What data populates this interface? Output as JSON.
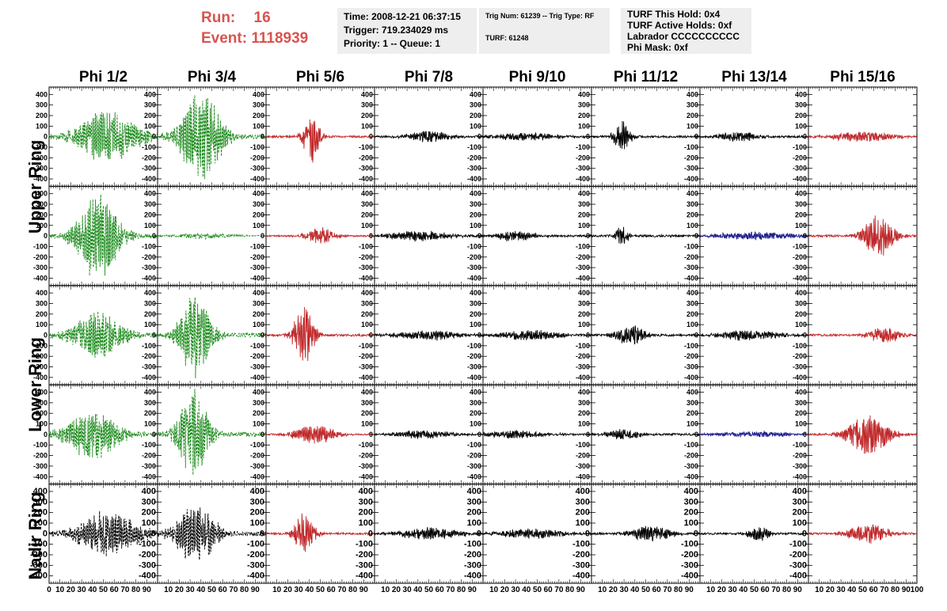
{
  "header": {
    "run_label": "Run:",
    "run_value": "16",
    "event_label": "Event:",
    "event_value": "1118939",
    "run_color": "#d9534f"
  },
  "info_panels": {
    "time": "Time: 2008-12-21 06:37:15",
    "trigger": "Trigger: 719.234029 ms",
    "priority": "Priority: 1 -- Queue: 1",
    "trig_num": "Trig Num: 61239 -- Trig Type: RF",
    "turf": "TURF: 61248",
    "turf_hold": "TURF This Hold: 0x4",
    "turf_active": "TURF Active Holds: 0xf",
    "labrador": "Labrador CCCCCCCCCC",
    "phi_mask": "Phi Mask: 0xf"
  },
  "columns": [
    "Phi 1/2",
    "Phi 3/4",
    "Phi 5/6",
    "Phi 7/8",
    "Phi 9/10",
    "Phi 11/12",
    "Phi 13/14",
    "Phi 15/16"
  ],
  "row_groups": [
    "Upper Ring",
    "Lower Ring",
    "Nadir Ring"
  ],
  "chart_data": {
    "type": "line",
    "description_rows": 5,
    "x_ticks": [
      0,
      10,
      20,
      30,
      40,
      50,
      60,
      70,
      80,
      90,
      100
    ],
    "xlim": [
      0,
      100
    ],
    "y_ticks": [
      400,
      300,
      200,
      100,
      0,
      -100,
      -200,
      -300,
      -400
    ],
    "ylim": [
      -470,
      470
    ],
    "colors": {
      "green": "#1a8a1a",
      "red": "#c0282a",
      "black": "#000000",
      "blue": "#1a1a8c"
    },
    "panels": [
      [
        {
          "color": "green",
          "dash": true,
          "amp": 260,
          "center": 55,
          "width": 30,
          "noise": 40
        },
        {
          "color": "green",
          "dash": true,
          "amp": 440,
          "center": 40,
          "width": 20,
          "noise": 40
        },
        {
          "color": "red",
          "dash": false,
          "amp": 250,
          "center": 42,
          "width": 8,
          "noise": 20
        },
        {
          "color": "black",
          "dash": false,
          "amp": 60,
          "center": 50,
          "width": 20,
          "noise": 20
        },
        {
          "color": "black",
          "dash": false,
          "amp": 40,
          "center": 40,
          "width": 30,
          "noise": 20
        },
        {
          "color": "black",
          "dash": false,
          "amp": 160,
          "center": 28,
          "width": 8,
          "noise": 20
        },
        {
          "color": "black",
          "dash": false,
          "amp": 50,
          "center": 35,
          "width": 20,
          "noise": 20
        },
        {
          "color": "red",
          "dash": false,
          "amp": 50,
          "center": 50,
          "width": 30,
          "noise": 20
        }
      ],
      [
        {
          "color": "green",
          "dash": true,
          "amp": 450,
          "center": 45,
          "width": 20,
          "noise": 40
        },
        {
          "color": "green",
          "dash": true,
          "amp": 30,
          "center": 40,
          "width": 30,
          "noise": 10
        },
        {
          "color": "red",
          "dash": false,
          "amp": 80,
          "center": 50,
          "width": 15,
          "noise": 15
        },
        {
          "color": "black",
          "dash": false,
          "amp": 50,
          "center": 40,
          "width": 30,
          "noise": 20
        },
        {
          "color": "black",
          "dash": false,
          "amp": 50,
          "center": 30,
          "width": 20,
          "noise": 20
        },
        {
          "color": "black",
          "dash": false,
          "amp": 120,
          "center": 28,
          "width": 6,
          "noise": 20
        },
        {
          "color": "blue",
          "dash": false,
          "amp": 40,
          "center": 50,
          "width": 40,
          "noise": 15
        },
        {
          "color": "red",
          "dash": false,
          "amp": 200,
          "center": 65,
          "width": 15,
          "noise": 20
        }
      ],
      [
        {
          "color": "green",
          "dash": true,
          "amp": 240,
          "center": 45,
          "width": 25,
          "noise": 40
        },
        {
          "color": "green",
          "dash": true,
          "amp": 430,
          "center": 35,
          "width": 15,
          "noise": 40
        },
        {
          "color": "red",
          "dash": false,
          "amp": 300,
          "center": 35,
          "width": 10,
          "noise": 20
        },
        {
          "color": "black",
          "dash": false,
          "amp": 50,
          "center": 50,
          "width": 30,
          "noise": 20
        },
        {
          "color": "black",
          "dash": false,
          "amp": 50,
          "center": 45,
          "width": 30,
          "noise": 20
        },
        {
          "color": "black",
          "dash": false,
          "amp": 100,
          "center": 35,
          "width": 15,
          "noise": 20
        },
        {
          "color": "black",
          "dash": false,
          "amp": 50,
          "center": 45,
          "width": 30,
          "noise": 20
        },
        {
          "color": "red",
          "dash": false,
          "amp": 80,
          "center": 70,
          "width": 15,
          "noise": 20
        }
      ],
      [
        {
          "color": "green",
          "dash": true,
          "amp": 250,
          "center": 40,
          "width": 25,
          "noise": 40
        },
        {
          "color": "green",
          "dash": true,
          "amp": 420,
          "center": 33,
          "width": 15,
          "noise": 40
        },
        {
          "color": "red",
          "dash": false,
          "amp": 100,
          "center": 45,
          "width": 20,
          "noise": 15
        },
        {
          "color": "black",
          "dash": false,
          "amp": 40,
          "center": 45,
          "width": 30,
          "noise": 15
        },
        {
          "color": "black",
          "dash": false,
          "amp": 40,
          "center": 30,
          "width": 30,
          "noise": 20
        },
        {
          "color": "black",
          "dash": false,
          "amp": 60,
          "center": 30,
          "width": 15,
          "noise": 20
        },
        {
          "color": "blue",
          "dash": false,
          "amp": 30,
          "center": 50,
          "width": 40,
          "noise": 10
        },
        {
          "color": "red",
          "dash": false,
          "amp": 200,
          "center": 55,
          "width": 20,
          "noise": 20
        }
      ],
      [
        {
          "color": "black",
          "dash": true,
          "amp": 220,
          "center": 55,
          "width": 30,
          "noise": 40
        },
        {
          "color": "black",
          "dash": true,
          "amp": 300,
          "center": 35,
          "width": 20,
          "noise": 40
        },
        {
          "color": "red",
          "dash": false,
          "amp": 200,
          "center": 35,
          "width": 10,
          "noise": 20
        },
        {
          "color": "black",
          "dash": false,
          "amp": 60,
          "center": 50,
          "width": 30,
          "noise": 20
        },
        {
          "color": "black",
          "dash": false,
          "amp": 50,
          "center": 45,
          "width": 30,
          "noise": 20
        },
        {
          "color": "black",
          "dash": false,
          "amp": 80,
          "center": 55,
          "width": 20,
          "noise": 20
        },
        {
          "color": "black",
          "dash": false,
          "amp": 80,
          "center": 55,
          "width": 10,
          "noise": 20
        },
        {
          "color": "red",
          "dash": false,
          "amp": 100,
          "center": 55,
          "width": 20,
          "noise": 20
        }
      ]
    ]
  }
}
